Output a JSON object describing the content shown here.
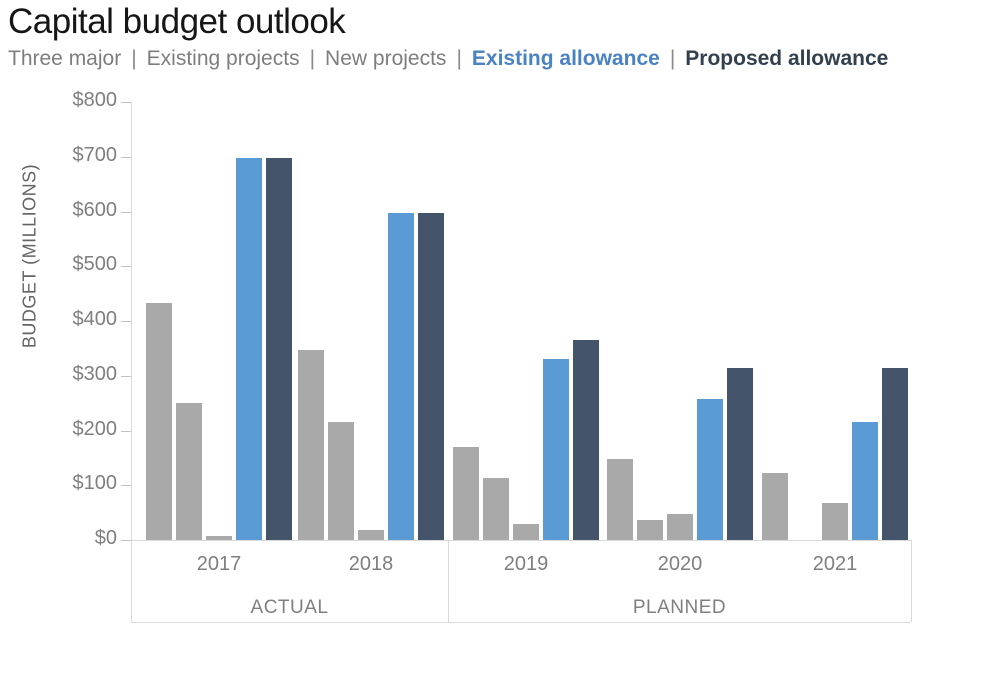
{
  "title": "Capital budget outlook",
  "legend": {
    "separator": "|",
    "items": [
      {
        "label": "Three major",
        "color": "#7e7e7e",
        "bold": false
      },
      {
        "label": "Existing projects",
        "color": "#7e7e7e",
        "bold": false
      },
      {
        "label": "New projects",
        "color": "#7e7e7e",
        "bold": false
      },
      {
        "label": "Existing allowance",
        "color": "#4a82c4",
        "bold": true
      },
      {
        "label": "Proposed allowance",
        "color": "#33404e",
        "bold": true
      }
    ]
  },
  "chart_data": {
    "type": "bar",
    "title": "Capital budget outlook",
    "xlabel": "",
    "ylabel": "BUDGET (MILLIONS)",
    "ylim": [
      0,
      800
    ],
    "ytick_step": 100,
    "ytick_labels": [
      "$0",
      "$100",
      "$200",
      "$300",
      "$400",
      "$500",
      "$600",
      "$700",
      "$800"
    ],
    "grid": false,
    "legend_position": "top",
    "categories": [
      "2017",
      "2018",
      "2019",
      "2020",
      "2021"
    ],
    "series": [
      {
        "name": "Three major",
        "color": "#a9a9a9",
        "values": [
          433,
          347,
          170,
          148,
          123
        ]
      },
      {
        "name": "Existing projects",
        "color": "#a9a9a9",
        "values": [
          250,
          215,
          113,
          37,
          0
        ]
      },
      {
        "name": "New projects",
        "color": "#a9a9a9",
        "values": [
          8,
          18,
          30,
          47,
          68
        ]
      },
      {
        "name": "Existing allowance",
        "color": "#5b9bd5",
        "values": [
          698,
          598,
          330,
          257,
          215
        ]
      },
      {
        "name": "Proposed allowance",
        "color": "#44546a",
        "values": [
          698,
          598,
          365,
          315,
          315
        ]
      }
    ],
    "group_sections": [
      {
        "label": "ACTUAL",
        "categories": [
          "2017",
          "2018"
        ]
      },
      {
        "label": "PLANNED",
        "categories": [
          "2019",
          "2020",
          "2021"
        ]
      }
    ]
  }
}
